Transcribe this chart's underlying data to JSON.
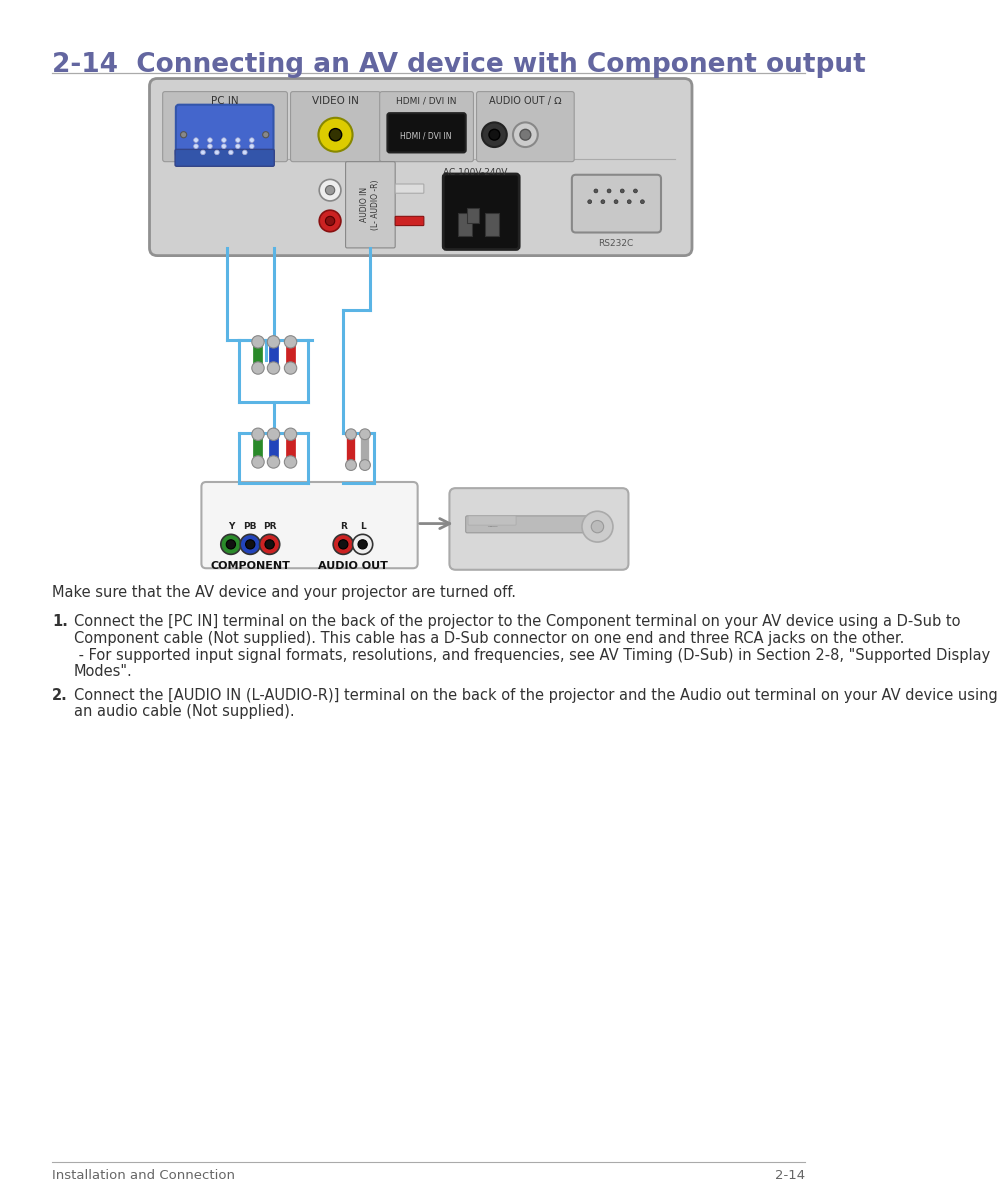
{
  "title": "2-14  Connecting an AV device with Component output",
  "title_color": "#6366a0",
  "title_fontsize": 19,
  "separator_color": "#aaaaaa",
  "bg_color": "#ffffff",
  "body_text_color": "#333333",
  "body_fontsize": 10.5,
  "footer_left": "Installation and Connection",
  "footer_right": "2-14",
  "footer_fontsize": 9.5,
  "footer_color": "#666666",
  "intro_text": "Make sure that the AV device and your projector are turned off.",
  "step1_num": "1.",
  "step1_line1": "Connect the [PC IN] terminal on the back of the projector to the Component terminal on your AV device using a D-Sub to",
  "step1_line2": "Component cable (Not supplied). This cable has a D-Sub connector on one end and three RCA jacks on the other.",
  "step1_line3": " - For supported input signal formats, resolutions, and frequencies, see AV Timing (D-Sub) in Section 2-8, \"Supported Display",
  "step1_line4": "Modes\".",
  "step2_num": "2.",
  "step2_line1": "Connect the [AUDIO IN (L-AUDIO-R)] terminal on the back of the projector and the Audio out terminal on your AV device using",
  "step2_line2": "an audio cable (Not supplied).",
  "panel_color": "#c8c8c8",
  "panel_edge": "#999999",
  "cable_blue": "#5ab4e5",
  "comp_green": "#2a8a2a",
  "comp_blue": "#2244bb",
  "comp_red": "#cc2222",
  "audio_red": "#cc1111",
  "audio_white": "#cccccc"
}
